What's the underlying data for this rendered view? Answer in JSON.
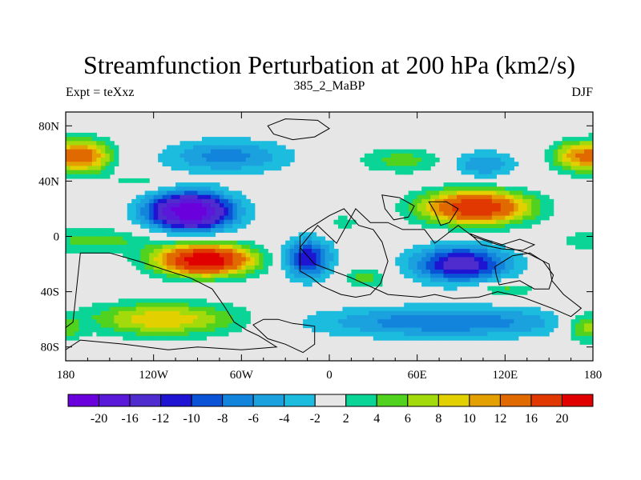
{
  "chart_data": {
    "type": "heatmap",
    "title": "Streamfunction Perturbation at 200 hPa (km2/s)",
    "subtitle_left": "Expt = teXxz",
    "subtitle_center": "385_2_MaBP",
    "subtitle_right": "DJF",
    "x_range": [
      -180,
      180
    ],
    "y_range": [
      -90,
      90
    ],
    "x_ticks": [
      {
        "value": -180,
        "label": "180"
      },
      {
        "value": -120,
        "label": "120W"
      },
      {
        "value": -60,
        "label": "60W"
      },
      {
        "value": 0,
        "label": "0"
      },
      {
        "value": 60,
        "label": "60E"
      },
      {
        "value": 120,
        "label": "120E"
      },
      {
        "value": 180,
        "label": "180"
      }
    ],
    "y_ticks": [
      {
        "value": 80,
        "label": "80N"
      },
      {
        "value": 40,
        "label": "40N"
      },
      {
        "value": 0,
        "label": "0"
      },
      {
        "value": -40,
        "label": "40S"
      },
      {
        "value": -80,
        "label": "80S"
      }
    ],
    "colorbar": {
      "colors": [
        "#6a00dc",
        "#5a18d8",
        "#4e2ccd",
        "#1e14d2",
        "#0a52d6",
        "#1284dc",
        "#1ba2de",
        "#1cbcde",
        "#e6e6e6",
        "#0ad496",
        "#50d21e",
        "#a2da0c",
        "#e2d000",
        "#e4a000",
        "#e06a00",
        "#e03800",
        "#e00000"
      ],
      "labels": [
        "-20",
        "-16",
        "-12",
        "-10",
        "-8",
        "-6",
        "-4",
        "-2",
        "2",
        "4",
        "6",
        "8",
        "10",
        "12",
        "16",
        "20"
      ]
    },
    "field_centers": [
      {
        "lon": -95,
        "lat": 18,
        "value": -24,
        "lon_radius": 28,
        "lat_radius": 13
      },
      {
        "lon": -85,
        "lat": -17,
        "value": 24,
        "lon_radius": 32,
        "lat_radius": 11
      },
      {
        "lon": -160,
        "lat": -3,
        "value": 5,
        "lon_radius": 40,
        "lat_radius": 9
      },
      {
        "lon": -165,
        "lat": 58,
        "value": 12,
        "lon_radius": 17,
        "lat_radius": 12
      },
      {
        "lon": -70,
        "lat": 58,
        "value": -7,
        "lon_radius": 42,
        "lat_radius": 12
      },
      {
        "lon": -15,
        "lat": -16,
        "value": -12,
        "lon_radius": 16,
        "lat_radius": 14
      },
      {
        "lon": 100,
        "lat": 21,
        "value": 20,
        "lon_radius": 36,
        "lat_radius": 12
      },
      {
        "lon": 90,
        "lat": -20,
        "value": -14,
        "lon_radius": 32,
        "lat_radius": 13
      },
      {
        "lon": 80,
        "lat": -62,
        "value": -8,
        "lon_radius": 90,
        "lat_radius": 11
      },
      {
        "lon": -115,
        "lat": -60,
        "value": 10,
        "lon_radius": 55,
        "lat_radius": 12
      },
      {
        "lon": 105,
        "lat": 52,
        "value": -6,
        "lon_radius": 22,
        "lat_radius": 10
      },
      {
        "lon": 170,
        "lat": 58,
        "value": 11,
        "lon_radius": 18,
        "lat_radius": 11
      },
      {
        "lon": 50,
        "lat": 55,
        "value": 5,
        "lon_radius": 30,
        "lat_radius": 9
      },
      {
        "lon": 175,
        "lat": -66,
        "value": 7,
        "lon_radius": 15,
        "lat_radius": 10
      },
      {
        "lon": 120,
        "lat": -38,
        "value": 5,
        "lon_radius": 20,
        "lat_radius": 5
      },
      {
        "lon": -130,
        "lat": 40,
        "value": 3,
        "lon_radius": 20,
        "lat_radius": 5
      },
      {
        "lon": 25,
        "lat": -30,
        "value": 5,
        "lon_radius": 15,
        "lat_radius": 7
      },
      {
        "lon": 10,
        "lat": 10,
        "value": 3,
        "lon_radius": 12,
        "lat_radius": 6
      }
    ],
    "landmasses": [
      {
        "name": "north-america",
        "points": [
          [
            -170,
            -12
          ],
          [
            -150,
            -12
          ],
          [
            -130,
            -18
          ],
          [
            -110,
            -25
          ],
          [
            -95,
            -30
          ],
          [
            -80,
            -38
          ],
          [
            -72,
            -50
          ],
          [
            -65,
            -62
          ],
          [
            -56,
            -68
          ],
          [
            -48,
            -72
          ],
          [
            -36,
            -80
          ],
          [
            -60,
            -82
          ],
          [
            -90,
            -80
          ],
          [
            -110,
            -82
          ],
          [
            -140,
            -78
          ],
          [
            -170,
            -75
          ],
          [
            -180,
            -82
          ],
          [
            -180,
            -66
          ],
          [
            -175,
            -62
          ]
        ]
      },
      {
        "name": "south-america",
        "points": [
          [
            -35,
            -60
          ],
          [
            -25,
            -63
          ],
          [
            -10,
            -65
          ],
          [
            -10,
            -78
          ],
          [
            -18,
            -84
          ],
          [
            -30,
            -78
          ],
          [
            -42,
            -74
          ],
          [
            -52,
            -64
          ],
          [
            -45,
            -60
          ]
        ]
      },
      {
        "name": "eurasia",
        "points": [
          [
            -10,
            -20
          ],
          [
            15,
            -30
          ],
          [
            40,
            -42
          ],
          [
            62,
            -44
          ],
          [
            72,
            -42
          ],
          [
            85,
            -45
          ],
          [
            102,
            -44
          ],
          [
            115,
            -40
          ],
          [
            132,
            -44
          ],
          [
            152,
            -52
          ],
          [
            165,
            -58
          ],
          [
            172,
            -52
          ],
          [
            160,
            -42
          ],
          [
            152,
            -32
          ],
          [
            150,
            -20
          ],
          [
            135,
            -12
          ],
          [
            112,
            -5
          ],
          [
            98,
            0
          ],
          [
            88,
            8
          ],
          [
            72,
            -5
          ],
          [
            65,
            5
          ],
          [
            50,
            5
          ],
          [
            40,
            10
          ],
          [
            28,
            10
          ],
          [
            18,
            20
          ],
          [
            5,
            -5
          ],
          [
            -8,
            8
          ],
          [
            -20,
            -8
          ]
        ]
      },
      {
        "name": "africa",
        "points": [
          [
            -20,
            0
          ],
          [
            -20,
            -25
          ],
          [
            -12,
            -30
          ],
          [
            -5,
            -36
          ],
          [
            8,
            -42
          ],
          [
            18,
            -44
          ],
          [
            28,
            -42
          ],
          [
            35,
            -34
          ],
          [
            40,
            -18
          ],
          [
            36,
            -4
          ],
          [
            30,
            5
          ],
          [
            20,
            8
          ],
          [
            10,
            20
          ],
          [
            0,
            15
          ],
          [
            -15,
            5
          ]
        ]
      },
      {
        "name": "greenland",
        "points": [
          [
            -25,
            70
          ],
          [
            -10,
            72
          ],
          [
            0,
            78
          ],
          [
            -8,
            84
          ],
          [
            -30,
            85
          ],
          [
            -42,
            80
          ],
          [
            -38,
            74
          ]
        ]
      },
      {
        "name": "arabia",
        "points": [
          [
            36,
            30
          ],
          [
            48,
            28
          ],
          [
            58,
            22
          ],
          [
            54,
            14
          ],
          [
            44,
            12
          ],
          [
            38,
            20
          ]
        ]
      },
      {
        "name": "india",
        "points": [
          [
            68,
            25
          ],
          [
            80,
            25
          ],
          [
            88,
            20
          ],
          [
            82,
            10
          ],
          [
            76,
            8
          ],
          [
            72,
            18
          ]
        ]
      },
      {
        "name": "indonesia",
        "points": [
          [
            96,
            2
          ],
          [
            106,
            -2
          ],
          [
            118,
            -6
          ],
          [
            130,
            -2
          ],
          [
            140,
            -6
          ],
          [
            132,
            -10
          ],
          [
            118,
            -9
          ],
          [
            104,
            -6
          ]
        ]
      },
      {
        "name": "australia",
        "points": [
          [
            113,
            -22
          ],
          [
            125,
            -14
          ],
          [
            137,
            -12
          ],
          [
            146,
            -18
          ],
          [
            153,
            -28
          ],
          [
            150,
            -38
          ],
          [
            140,
            -38
          ],
          [
            130,
            -32
          ],
          [
            116,
            -35
          ],
          [
            114,
            -28
          ]
        ]
      }
    ]
  }
}
